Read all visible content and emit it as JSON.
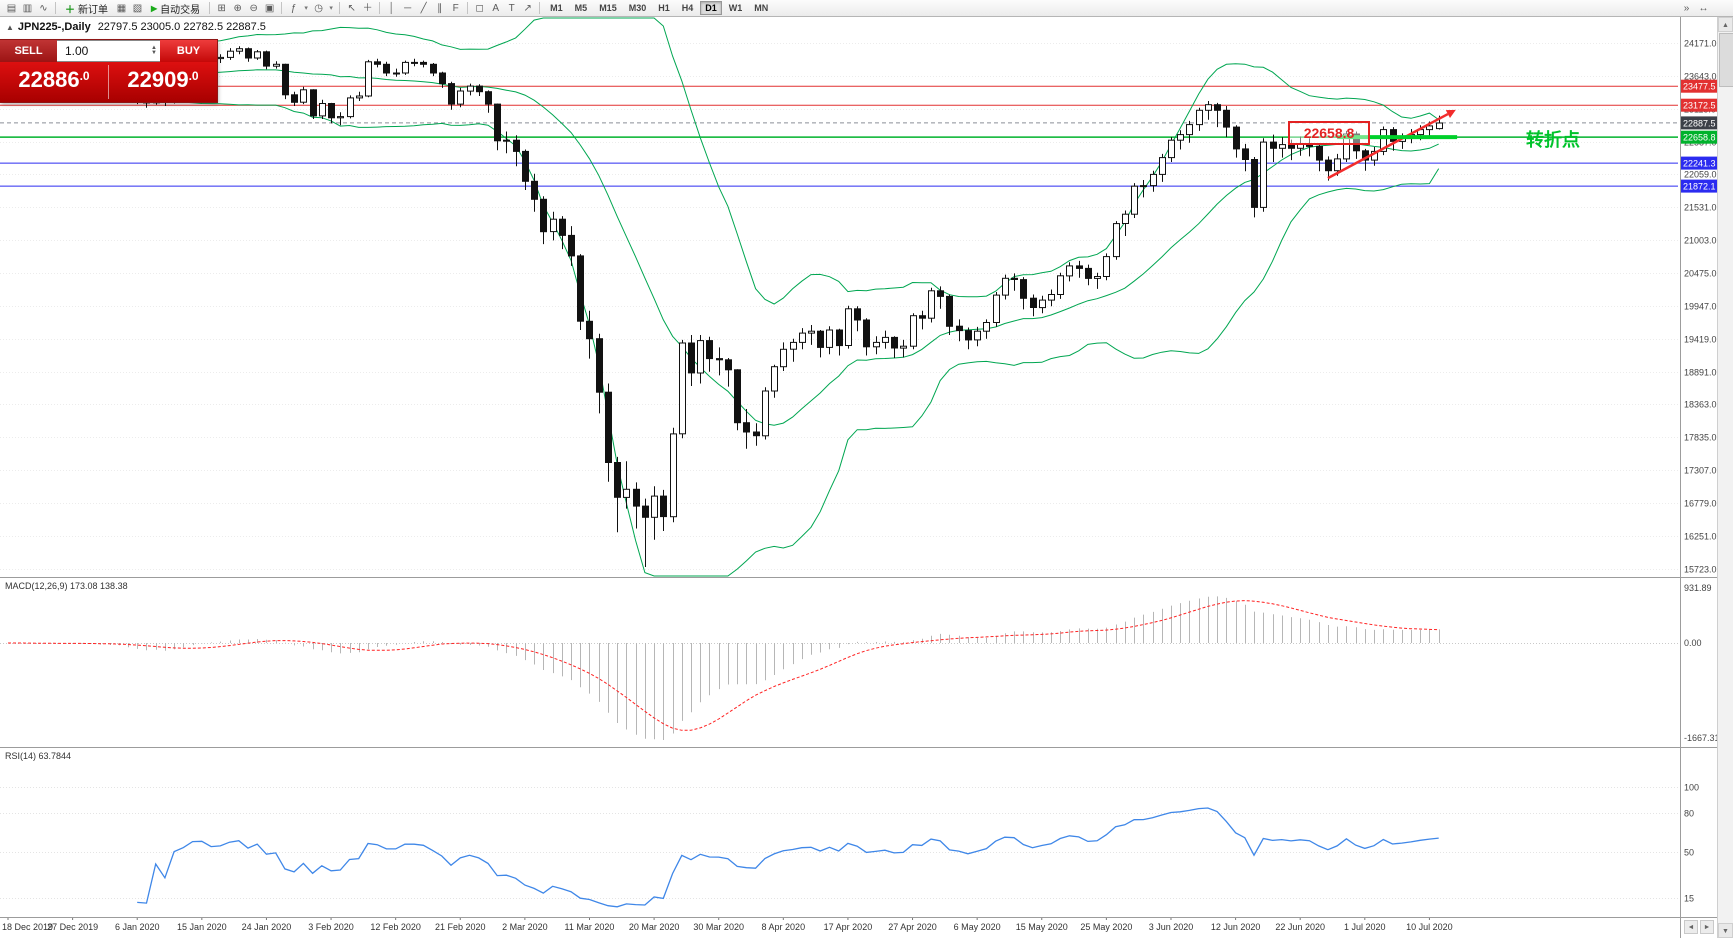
{
  "toolbar": {
    "new_order_label": "新订单",
    "auto_trading_label": "自动交易",
    "timeframes": [
      "M1",
      "M5",
      "M15",
      "M30",
      "H1",
      "H4",
      "D1",
      "W1",
      "MN"
    ],
    "active_timeframe": "D1"
  },
  "chart": {
    "title": "JPN225-,Daily",
    "ohlc": "22797.5 23005.0 22782.5 22887.5"
  },
  "trade_panel": {
    "sell_label": "SELL",
    "buy_label": "BUY",
    "volume": "1.00",
    "sell_price_main": "22886",
    "sell_price_frac": ".0",
    "buy_price_main": "22909",
    "buy_price_frac": ".0"
  },
  "macd": {
    "label": "MACD(12,26,9) 173.08 138.38",
    "axis": [
      "931.89",
      "0.00",
      "-1667.31"
    ]
  },
  "rsi": {
    "label": "RSI(14) 63.7844",
    "axis": [
      "100",
      "80",
      "50",
      "15"
    ]
  },
  "annotations": {
    "price_note": "22658.8",
    "turning_point": "转折点",
    "trend_line": {
      "from_bar": 143,
      "from_price": 22000,
      "to_bar": 156,
      "to_price": 23030,
      "color": "#f22c2c"
    },
    "support_segment": {
      "from_bar": 144,
      "to_bar": 157,
      "price": 22658.8,
      "color": "#00d02a"
    }
  },
  "price_axis": {
    "gridline_labels": [
      "24171.0",
      "23643.0",
      "23115.0",
      "22587.0",
      "22059.0",
      "21531.0",
      "21003.0",
      "20475.0",
      "19947.0",
      "19419.0",
      "18891.0",
      "18363.0",
      "17835.0",
      "17307.0",
      "16779.0",
      "16251.0",
      "15723.0"
    ]
  },
  "x_axis": {
    "labels": [
      "18 Dec 2019",
      "27 Dec 2019",
      "6 Jan 2020",
      "15 Jan 2020",
      "24 Jan 2020",
      "3 Feb 2020",
      "12 Feb 2020",
      "21 Feb 2020",
      "2 Mar 2020",
      "11 Mar 2020",
      "20 Mar 2020",
      "30 Mar 2020",
      "8 Apr 2020",
      "17 Apr 2020",
      "27 Apr 2020",
      "6 May 2020",
      "15 May 2020",
      "25 May 2020",
      "3 Jun 2020",
      "12 Jun 2020",
      "22 Jun 2020",
      "1 Jul 2020",
      "10 Jul 2020"
    ]
  },
  "chart_data": {
    "type": "candlestick",
    "symbol": "JPN225-",
    "period": "Daily",
    "ohlc_current": {
      "open": 22797.5,
      "high": 23005.0,
      "low": 22782.5,
      "close": 22887.5
    },
    "visible_price_range": [
      15590,
      24590
    ],
    "indicators": {
      "bollinger": {
        "period": 20,
        "deviation": 2,
        "color": "#00a651"
      },
      "macd": {
        "fast": 12,
        "slow": 26,
        "signal": 9,
        "values": [
          173.08,
          138.38
        ],
        "histogram_color": "#b6b6b6",
        "signal_color": "#ff2222"
      },
      "rsi": {
        "period": 14,
        "value": 63.7844,
        "color": "#3f87e8"
      }
    },
    "hlines": [
      {
        "price": 23477.5,
        "label": "23477.5",
        "color": "#e23131",
        "badge": true,
        "name": "resistance-line-1"
      },
      {
        "price": 23172.5,
        "label": "23172.5",
        "color": "#e23131",
        "badge": true,
        "name": "resistance-line-2"
      },
      {
        "price": 22887.5,
        "label": "22887.5",
        "color": "#8a8f98",
        "style": "dashed",
        "badge": true,
        "badge_bg": "#3c4048",
        "name": "current-price-line"
      },
      {
        "price": 22658.8,
        "label": "22658.8",
        "color": "#00b22c",
        "width": 1.5,
        "badge": true,
        "name": "support-line-green"
      },
      {
        "price": 22241.3,
        "label": "22241.3",
        "color": "#2b2bf0",
        "badge": true,
        "name": "support-line-blue-1"
      },
      {
        "price": 21872.1,
        "label": "21872.1",
        "color": "#2b2bf0",
        "badge": true,
        "name": "support-line-blue-2"
      }
    ],
    "candles": [
      [
        23840,
        23930,
        23790,
        23870
      ],
      [
        23870,
        23910,
        23800,
        23850
      ],
      [
        23850,
        23880,
        23770,
        23820
      ],
      [
        23820,
        23870,
        23790,
        23830
      ],
      [
        23830,
        23890,
        23800,
        23840
      ],
      [
        23840,
        23880,
        23790,
        23830
      ],
      [
        23830,
        23850,
        23750,
        23790
      ],
      [
        23790,
        23880,
        23760,
        23840
      ],
      [
        23840,
        23890,
        23800,
        23840
      ],
      [
        23840,
        23870,
        23770,
        23810
      ],
      [
        23810,
        23840,
        23620,
        23660
      ],
      [
        23660,
        23720,
        23610,
        23660
      ],
      [
        23660,
        23730,
        23630,
        23680
      ],
      [
        23680,
        23690,
        23270,
        23320
      ],
      [
        23320,
        23380,
        23190,
        23250
      ],
      [
        23250,
        23300,
        23130,
        23210
      ],
      [
        23210,
        23620,
        23180,
        23580
      ],
      [
        23580,
        23600,
        23160,
        23220
      ],
      [
        23220,
        23770,
        23200,
        23740
      ],
      [
        23740,
        23900,
        23700,
        23850
      ],
      [
        23850,
        24060,
        23820,
        24030
      ],
      [
        24030,
        24120,
        23970,
        24040
      ],
      [
        24040,
        24060,
        23860,
        23920
      ],
      [
        23920,
        23990,
        23850,
        23940
      ],
      [
        23940,
        24090,
        23900,
        24040
      ],
      [
        24040,
        24120,
        23990,
        24080
      ],
      [
        24080,
        24100,
        23870,
        23930
      ],
      [
        23930,
        24060,
        23900,
        24030
      ],
      [
        24030,
        24050,
        23750,
        23800
      ],
      [
        23800,
        23880,
        23760,
        23830
      ],
      [
        23830,
        23840,
        23270,
        23340
      ],
      [
        23340,
        23390,
        23160,
        23220
      ],
      [
        23220,
        23470,
        23190,
        23420
      ],
      [
        23420,
        23430,
        22950,
        23000
      ],
      [
        23000,
        23260,
        22950,
        23200
      ],
      [
        23200,
        23210,
        22880,
        22970
      ],
      [
        22970,
        23060,
        22850,
        22990
      ],
      [
        22990,
        23330,
        22960,
        23290
      ],
      [
        23290,
        23390,
        23240,
        23320
      ],
      [
        23320,
        23900,
        23300,
        23870
      ],
      [
        23870,
        23920,
        23780,
        23830
      ],
      [
        23830,
        23870,
        23640,
        23690
      ],
      [
        23690,
        23760,
        23630,
        23690
      ],
      [
        23690,
        23890,
        23660,
        23860
      ],
      [
        23860,
        23920,
        23800,
        23860
      ],
      [
        23860,
        23890,
        23780,
        23830
      ],
      [
        23830,
        23850,
        23640,
        23690
      ],
      [
        23690,
        23710,
        23450,
        23520
      ],
      [
        23520,
        23550,
        23100,
        23190
      ],
      [
        23190,
        23450,
        23140,
        23400
      ],
      [
        23400,
        23520,
        23330,
        23480
      ],
      [
        23480,
        23510,
        23320,
        23390
      ],
      [
        23390,
        23410,
        23050,
        23190
      ],
      [
        23190,
        23200,
        22450,
        22600
      ],
      [
        22600,
        22750,
        22400,
        22610
      ],
      [
        22610,
        22690,
        22190,
        22430
      ],
      [
        22430,
        22460,
        21810,
        21950
      ],
      [
        21950,
        22070,
        21460,
        21660
      ],
      [
        21660,
        21710,
        20940,
        21140
      ],
      [
        21140,
        21460,
        21000,
        21340
      ],
      [
        21340,
        21390,
        20860,
        21080
      ],
      [
        21080,
        21230,
        20590,
        20750
      ],
      [
        20750,
        20780,
        19560,
        19700
      ],
      [
        19700,
        19870,
        19100,
        19420
      ],
      [
        19420,
        19500,
        18220,
        18560
      ],
      [
        18560,
        18700,
        17120,
        17430
      ],
      [
        17430,
        17520,
        16310,
        16870
      ],
      [
        16870,
        17450,
        16690,
        17000
      ],
      [
        17000,
        17110,
        16370,
        16730
      ],
      [
        16730,
        16850,
        15750,
        16550
      ],
      [
        16550,
        17050,
        16190,
        16890
      ],
      [
        16890,
        16990,
        16330,
        16560
      ],
      [
        16560,
        17990,
        16470,
        17890
      ],
      [
        17890,
        19400,
        17820,
        19350
      ],
      [
        19350,
        19480,
        18660,
        18870
      ],
      [
        18870,
        19480,
        18700,
        19390
      ],
      [
        19390,
        19450,
        18890,
        19100
      ],
      [
        19100,
        19280,
        18830,
        19080
      ],
      [
        19080,
        19110,
        18650,
        18920
      ],
      [
        18920,
        18930,
        17950,
        18070
      ],
      [
        18070,
        18290,
        17650,
        17920
      ],
      [
        17920,
        18060,
        17700,
        17860
      ],
      [
        17860,
        18640,
        17800,
        18580
      ],
      [
        18580,
        19000,
        18470,
        18970
      ],
      [
        18970,
        19360,
        18900,
        19250
      ],
      [
        19250,
        19420,
        19050,
        19360
      ],
      [
        19360,
        19590,
        19250,
        19510
      ],
      [
        19510,
        19640,
        19320,
        19540
      ],
      [
        19540,
        19560,
        19120,
        19280
      ],
      [
        19280,
        19620,
        19170,
        19560
      ],
      [
        19560,
        19580,
        19150,
        19310
      ],
      [
        19310,
        19950,
        19260,
        19900
      ],
      [
        19900,
        19940,
        19540,
        19720
      ],
      [
        19720,
        19750,
        19150,
        19290
      ],
      [
        19290,
        19460,
        19170,
        19360
      ],
      [
        19360,
        19550,
        19260,
        19440
      ],
      [
        19440,
        19460,
        19110,
        19270
      ],
      [
        19270,
        19400,
        19120,
        19300
      ],
      [
        19300,
        19830,
        19250,
        19790
      ],
      [
        19790,
        19870,
        19570,
        19750
      ],
      [
        19750,
        20240,
        19680,
        20190
      ],
      [
        20190,
        20260,
        19900,
        20100
      ],
      [
        20100,
        20130,
        19480,
        19620
      ],
      [
        19620,
        19730,
        19380,
        19550
      ],
      [
        19550,
        19600,
        19250,
        19400
      ],
      [
        19400,
        19610,
        19300,
        19540
      ],
      [
        19540,
        19730,
        19420,
        19680
      ],
      [
        19680,
        20170,
        19610,
        20120
      ],
      [
        20120,
        20450,
        20050,
        20390
      ],
      [
        20390,
        20470,
        20190,
        20370
      ],
      [
        20370,
        20410,
        19890,
        20070
      ],
      [
        20070,
        20130,
        19780,
        19920
      ],
      [
        19920,
        20110,
        19830,
        20040
      ],
      [
        20040,
        20210,
        19940,
        20130
      ],
      [
        20130,
        20480,
        20060,
        20430
      ],
      [
        20430,
        20650,
        20340,
        20590
      ],
      [
        20590,
        20670,
        20400,
        20550
      ],
      [
        20550,
        20610,
        20280,
        20390
      ],
      [
        20390,
        20480,
        20220,
        20420
      ],
      [
        20420,
        20790,
        20360,
        20740
      ],
      [
        20740,
        21310,
        20690,
        21270
      ],
      [
        21270,
        21480,
        21070,
        21420
      ],
      [
        21420,
        21920,
        21360,
        21870
      ],
      [
        21870,
        21970,
        21690,
        21880
      ],
      [
        21880,
        22120,
        21780,
        22060
      ],
      [
        22060,
        22390,
        21940,
        22330
      ],
      [
        22330,
        22660,
        22260,
        22610
      ],
      [
        22610,
        22770,
        22460,
        22700
      ],
      [
        22700,
        22920,
        22570,
        22860
      ],
      [
        22860,
        23130,
        22760,
        23090
      ],
      [
        23090,
        23240,
        22940,
        23180
      ],
      [
        23180,
        23210,
        22820,
        23090
      ],
      [
        23090,
        23160,
        22660,
        22820
      ],
      [
        22820,
        22850,
        22330,
        22470
      ],
      [
        22470,
        22550,
        22110,
        22300
      ],
      [
        22300,
        22340,
        21370,
        21530
      ],
      [
        21530,
        22640,
        21460,
        22580
      ],
      [
        22580,
        22700,
        22260,
        22480
      ],
      [
        22480,
        22660,
        22330,
        22540
      ],
      [
        22540,
        22620,
        22290,
        22480
      ],
      [
        22480,
        22670,
        22360,
        22550
      ],
      [
        22550,
        22640,
        22350,
        22510
      ],
      [
        22510,
        22560,
        22110,
        22290
      ],
      [
        22290,
        22350,
        21960,
        22120
      ],
      [
        22120,
        22390,
        22040,
        22310
      ],
      [
        22310,
        22760,
        22260,
        22710
      ],
      [
        22710,
        22750,
        22310,
        22440
      ],
      [
        22440,
        22470,
        22120,
        22290
      ],
      [
        22290,
        22500,
        22200,
        22430
      ],
      [
        22430,
        22830,
        22370,
        22780
      ],
      [
        22780,
        22820,
        22440,
        22590
      ],
      [
        22590,
        22720,
        22470,
        22640
      ],
      [
        22640,
        22790,
        22560,
        22700
      ],
      [
        22700,
        22850,
        22610,
        22780
      ],
      [
        22780,
        22910,
        22680,
        22840
      ],
      [
        22797,
        23005,
        22782,
        22887
      ]
    ]
  }
}
